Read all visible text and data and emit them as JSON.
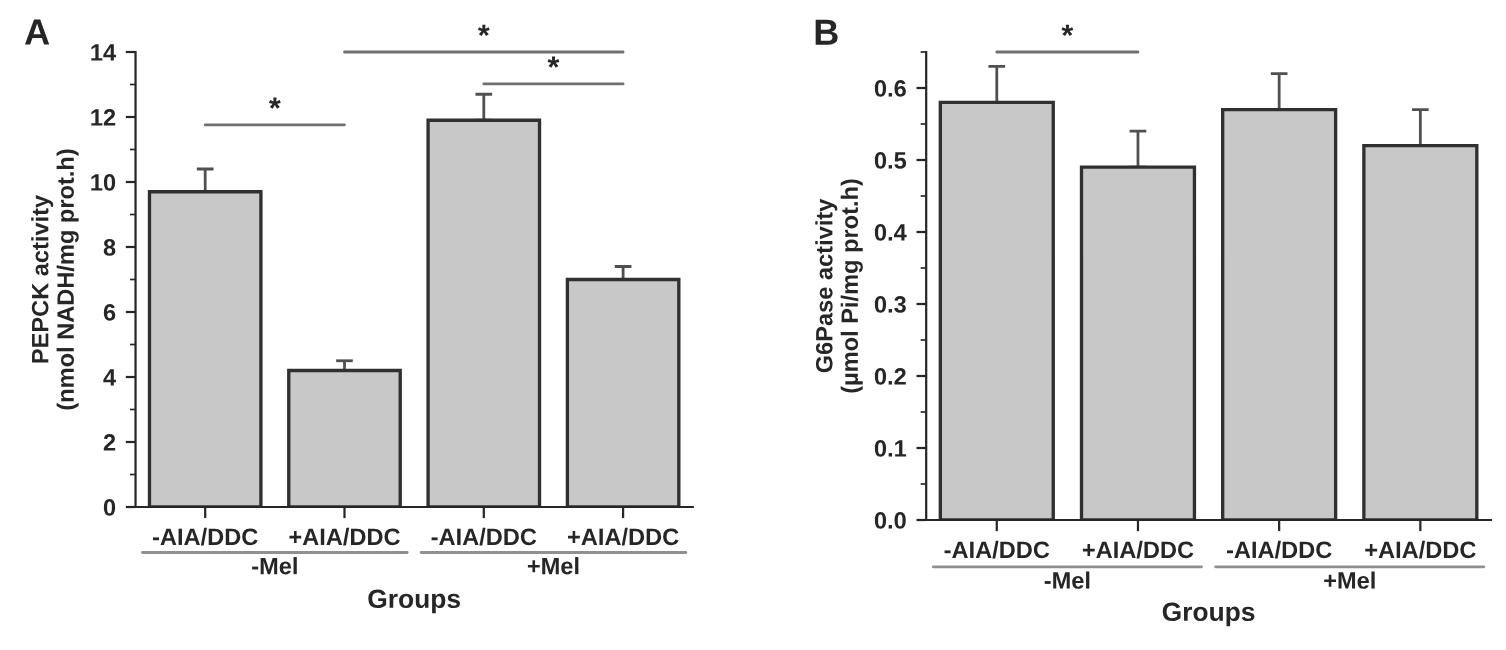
{
  "chart_data": [
    {
      "type": "bar",
      "title": "A",
      "xlabel": "Groups",
      "ylabel": "PEPCK activity\n(nmol NADH/mg prot.h)",
      "categories": [
        "-AIA/DDC",
        "+AIA/DDC",
        "-AIA/DDC",
        "+AIA/DDC"
      ],
      "series": [
        {
          "color": "#c8c8c8",
          "values": [
            9.7,
            4.2,
            11.9,
            7.0
          ],
          "errors": [
            [
              9.7,
              10.4
            ],
            [
              4.2,
              4.5
            ],
            [
              11.9,
              12.7
            ],
            [
              7.0,
              7.4
            ]
          ]
        }
      ],
      "ylim": [
        0,
        14
      ],
      "yticks": [
        0,
        2,
        4,
        6,
        8,
        10,
        12,
        14
      ],
      "annotations": [
        "*",
        "*",
        "*",
        "-Mel",
        "+Mel"
      ]
    },
    {
      "type": "bar",
      "title": "B",
      "xlabel": "Groups",
      "ylabel": "G6Pase activity\n(µmol Pi/mg prot.h)",
      "categories": [
        "-AIA/DDC",
        "+AIA/DDC",
        "-AIA/DDC",
        "+AIA/DDC"
      ],
      "series": [
        {
          "color": "#c8c8c8",
          "values": [
            0.58,
            0.49,
            0.57,
            0.52
          ],
          "errors": [
            [
              0.58,
              0.63
            ],
            [
              0.49,
              0.54
            ],
            [
              0.57,
              0.62
            ],
            [
              0.52,
              0.57
            ]
          ]
        }
      ],
      "ylim": [
        0,
        0.65
      ],
      "yticks": [
        {
          "value": 0,
          "label": "0.0"
        },
        0.1,
        0.2,
        0.3,
        0.4,
        0.5,
        0.6
      ],
      "annotations": [
        "*",
        "-Mel",
        "+Mel"
      ]
    }
  ]
}
